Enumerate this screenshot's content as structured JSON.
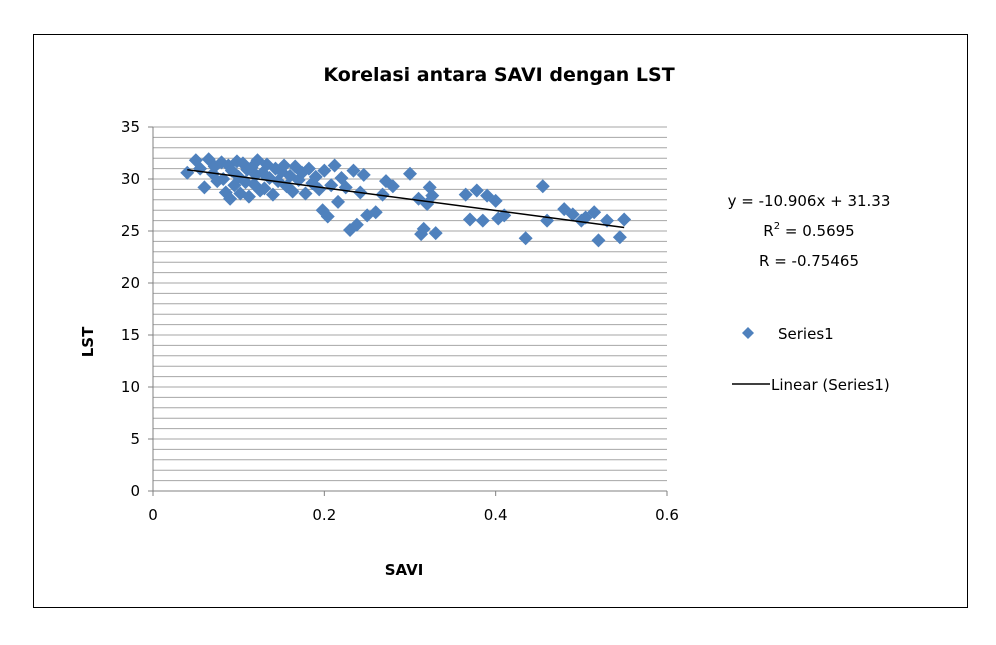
{
  "chart_data": {
    "type": "scatter",
    "title": "Korelasi antara SAVI dengan LST",
    "xlabel": "SAVI",
    "ylabel": "LST",
    "xlim": [
      0,
      0.6
    ],
    "ylim": [
      0,
      35
    ],
    "x_ticks": [
      "0",
      "0.2",
      "0.4",
      "0.6"
    ],
    "y_ticks": [
      "0",
      "5",
      "10",
      "15",
      "20",
      "25",
      "30",
      "35"
    ],
    "gridlines": "horizontal",
    "legend_position": "right",
    "colors": {
      "series": "#4F81BD",
      "trendline": "#000000",
      "grid": "#A6A6A6"
    },
    "series": [
      {
        "name": "Series1",
        "marker": "diamond",
        "points": [
          [
            0.04,
            30.6
          ],
          [
            0.05,
            31.8
          ],
          [
            0.055,
            31.0
          ],
          [
            0.06,
            29.2
          ],
          [
            0.065,
            31.9
          ],
          [
            0.07,
            30.5
          ],
          [
            0.072,
            31.2
          ],
          [
            0.075,
            29.8
          ],
          [
            0.08,
            31.6
          ],
          [
            0.082,
            30.0
          ],
          [
            0.085,
            28.7
          ],
          [
            0.088,
            31.3
          ],
          [
            0.09,
            28.1
          ],
          [
            0.092,
            30.8
          ],
          [
            0.095,
            29.4
          ],
          [
            0.098,
            31.7
          ],
          [
            0.1,
            30.2
          ],
          [
            0.102,
            28.6
          ],
          [
            0.105,
            31.5
          ],
          [
            0.108,
            29.7
          ],
          [
            0.11,
            30.9
          ],
          [
            0.112,
            28.3
          ],
          [
            0.115,
            31.1
          ],
          [
            0.118,
            29.5
          ],
          [
            0.12,
            30.4
          ],
          [
            0.122,
            31.8
          ],
          [
            0.125,
            28.9
          ],
          [
            0.128,
            30.6
          ],
          [
            0.13,
            29.1
          ],
          [
            0.133,
            31.4
          ],
          [
            0.136,
            30.1
          ],
          [
            0.14,
            28.5
          ],
          [
            0.143,
            31.0
          ],
          [
            0.146,
            29.8
          ],
          [
            0.15,
            30.7
          ],
          [
            0.153,
            31.3
          ],
          [
            0.156,
            29.3
          ],
          [
            0.16,
            30.3
          ],
          [
            0.163,
            28.8
          ],
          [
            0.166,
            31.2
          ],
          [
            0.17,
            29.9
          ],
          [
            0.174,
            30.6
          ],
          [
            0.178,
            28.6
          ],
          [
            0.182,
            31.0
          ],
          [
            0.186,
            29.6
          ],
          [
            0.19,
            30.2
          ],
          [
            0.194,
            29.0
          ],
          [
            0.198,
            27.0
          ],
          [
            0.2,
            30.8
          ],
          [
            0.204,
            26.4
          ],
          [
            0.208,
            29.4
          ],
          [
            0.212,
            31.3
          ],
          [
            0.216,
            27.8
          ],
          [
            0.22,
            30.1
          ],
          [
            0.225,
            29.2
          ],
          [
            0.23,
            25.1
          ],
          [
            0.234,
            30.8
          ],
          [
            0.238,
            25.6
          ],
          [
            0.242,
            28.7
          ],
          [
            0.246,
            30.4
          ],
          [
            0.25,
            26.5
          ],
          [
            0.26,
            26.8
          ],
          [
            0.268,
            28.5
          ],
          [
            0.272,
            29.8
          ],
          [
            0.28,
            29.3
          ],
          [
            0.3,
            30.5
          ],
          [
            0.31,
            28.1
          ],
          [
            0.313,
            24.7
          ],
          [
            0.316,
            25.2
          ],
          [
            0.32,
            27.6
          ],
          [
            0.323,
            29.2
          ],
          [
            0.326,
            28.4
          ],
          [
            0.33,
            24.8
          ],
          [
            0.365,
            28.5
          ],
          [
            0.37,
            26.1
          ],
          [
            0.378,
            28.9
          ],
          [
            0.385,
            26.0
          ],
          [
            0.39,
            28.4
          ],
          [
            0.4,
            27.9
          ],
          [
            0.403,
            26.2
          ],
          [
            0.41,
            26.5
          ],
          [
            0.435,
            24.3
          ],
          [
            0.455,
            29.3
          ],
          [
            0.46,
            26.0
          ],
          [
            0.48,
            27.1
          ],
          [
            0.49,
            26.6
          ],
          [
            0.5,
            26.0
          ],
          [
            0.505,
            26.3
          ],
          [
            0.515,
            26.8
          ],
          [
            0.52,
            24.1
          ],
          [
            0.53,
            26.0
          ],
          [
            0.545,
            24.4
          ],
          [
            0.55,
            26.1
          ]
        ]
      }
    ],
    "trendline": {
      "name": "Linear (Series1)",
      "slope": -10.906,
      "intercept": 31.33,
      "x_range": [
        0.04,
        0.55
      ],
      "equation": "y = -10.906x + 31.33",
      "r2_prefix": "R",
      "r2_sup": "2",
      "r2_suffix": " = 0.5695",
      "r_text": "R = -0.75465"
    },
    "legend": [
      {
        "label": "Series1"
      },
      {
        "label": "Linear (Series1)"
      }
    ]
  }
}
